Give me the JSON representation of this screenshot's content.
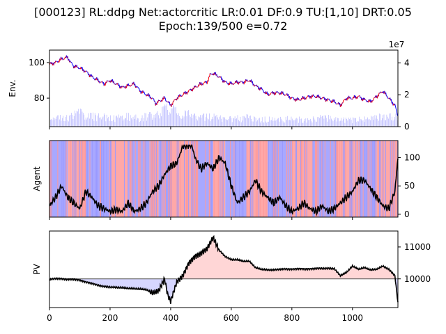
{
  "title_line1": "[000123] RL:ddpg Net:actorcritic LR:0.01 DF:0.9 TU:[1,10] DRT:0.05",
  "title_line2": "Epoch:139/500 e=0.72",
  "chart_data": [
    {
      "type": "line",
      "panel": "env",
      "ylabel": "Env.",
      "xlim": [
        0,
        1150
      ],
      "ylim": [
        64,
        107
      ],
      "yticks": [
        80,
        100
      ],
      "right_axis": {
        "ylim": [
          0,
          48000000
        ],
        "ticks": [
          0,
          2,
          4
        ],
        "exponent_label": "1e7",
        "series": "volume",
        "type": "bar",
        "color": "#6666ff"
      },
      "colors": {
        "up": "#ff0000",
        "down": "#0000ff"
      },
      "series": [
        {
          "values_x": [
            0,
            20,
            40,
            60,
            70,
            80,
            100,
            120,
            140,
            160,
            180,
            200,
            220,
            240,
            260,
            280,
            300,
            320,
            340,
            350,
            360,
            380,
            400,
            420,
            440,
            460,
            480,
            500,
            520,
            530,
            540,
            560,
            580,
            600,
            620,
            640,
            660,
            680,
            700,
            720,
            740,
            760,
            780,
            800,
            820,
            840,
            860,
            880,
            900,
            920,
            940,
            960,
            980,
            1000,
            1020,
            1040,
            1060,
            1080,
            1100,
            1120,
            1140,
            1150
          ],
          "values": [
            99,
            100,
            102,
            103,
            100,
            98,
            97,
            95,
            92,
            90,
            88,
            90,
            88,
            86,
            87,
            88,
            84,
            82,
            80,
            77,
            78,
            80,
            76,
            80,
            82,
            84,
            86,
            88,
            89,
            93,
            94,
            92,
            89,
            88,
            89,
            89,
            90,
            87,
            85,
            82,
            83,
            83,
            82,
            80,
            79,
            80,
            81,
            81,
            80,
            79,
            78,
            76,
            80,
            80,
            81,
            79,
            78,
            81,
            84,
            80,
            76,
            70
          ]
        }
      ],
      "volume": {
        "x": [
          0,
          50,
          100,
          150,
          200,
          250,
          300,
          350,
          400,
          450,
          500,
          550,
          600,
          650,
          700,
          750,
          800,
          850,
          900,
          950,
          1000,
          1050,
          1100,
          1150
        ],
        "values": [
          6000000,
          8000000,
          12000000,
          9000000,
          8000000,
          9000000,
          8000000,
          11000000,
          16000000,
          12000000,
          9000000,
          8000000,
          7000000,
          8000000,
          7000000,
          6000000,
          7000000,
          6000000,
          8000000,
          7000000,
          6000000,
          7000000,
          9000000,
          8000000
        ]
      }
    },
    {
      "type": "line",
      "panel": "agent",
      "ylabel": "Agent",
      "xlim": [
        0,
        1150
      ],
      "ylim": [
        -5,
        130
      ],
      "yticks": [
        0,
        50,
        100
      ],
      "background_colors": {
        "buy": "#ff9999",
        "sell": "#9999ff"
      },
      "series": [
        {
          "x": [
            0,
            20,
            40,
            60,
            80,
            100,
            120,
            140,
            160,
            180,
            200,
            220,
            240,
            260,
            280,
            300,
            320,
            340,
            360,
            380,
            400,
            420,
            440,
            460,
            470,
            480,
            500,
            520,
            540,
            560,
            580,
            600,
            620,
            640,
            660,
            680,
            700,
            720,
            740,
            760,
            780,
            800,
            820,
            840,
            860,
            880,
            900,
            920,
            940,
            960,
            980,
            1000,
            1020,
            1040,
            1060,
            1080,
            1100,
            1120,
            1140,
            1150
          ],
          "values": [
            15,
            30,
            50,
            30,
            20,
            10,
            40,
            30,
            15,
            10,
            5,
            8,
            5,
            20,
            5,
            10,
            20,
            40,
            50,
            70,
            85,
            90,
            120,
            122,
            122,
            100,
            80,
            90,
            80,
            100,
            90,
            50,
            20,
            30,
            40,
            60,
            40,
            30,
            20,
            30,
            15,
            5,
            10,
            20,
            10,
            5,
            15,
            5,
            10,
            20,
            30,
            40,
            60,
            60,
            45,
            30,
            15,
            10,
            40,
            100
          ]
        }
      ],
      "position_bands": [
        {
          "x0": 0,
          "x1": 60,
          "side": "sell"
        },
        {
          "x0": 60,
          "x1": 120,
          "side": "buy"
        },
        {
          "x0": 120,
          "x1": 200,
          "side": "sell"
        },
        {
          "x0": 200,
          "x1": 260,
          "side": "buy"
        },
        {
          "x0": 260,
          "x1": 330,
          "side": "sell"
        },
        {
          "x0": 330,
          "x1": 360,
          "side": "buy"
        },
        {
          "x0": 360,
          "x1": 400,
          "side": "sell"
        },
        {
          "x0": 400,
          "x1": 470,
          "side": "buy"
        },
        {
          "x0": 470,
          "x1": 540,
          "side": "sell"
        },
        {
          "x0": 540,
          "x1": 580,
          "side": "buy"
        },
        {
          "x0": 580,
          "x1": 650,
          "side": "sell"
        },
        {
          "x0": 650,
          "x1": 720,
          "side": "buy"
        },
        {
          "x0": 720,
          "x1": 800,
          "side": "sell"
        },
        {
          "x0": 800,
          "x1": 870,
          "side": "buy"
        },
        {
          "x0": 870,
          "x1": 950,
          "side": "sell"
        },
        {
          "x0": 950,
          "x1": 1020,
          "side": "buy"
        },
        {
          "x0": 1020,
          "x1": 1080,
          "side": "sell"
        },
        {
          "x0": 1080,
          "x1": 1150,
          "side": "buy"
        }
      ]
    },
    {
      "type": "area",
      "panel": "pv",
      "ylabel": "PV",
      "xlim": [
        0,
        1150
      ],
      "ylim": [
        9100,
        11500
      ],
      "baseline": 10000,
      "yticks": [
        10000,
        11000
      ],
      "xticks": [
        0,
        200,
        400,
        600,
        800,
        1000
      ],
      "colors": {
        "above": "#ffcccc",
        "below": "#ccccff",
        "line": "#000000",
        "baseline": "#555555"
      },
      "series": [
        {
          "x": [
            0,
            20,
            40,
            60,
            80,
            100,
            120,
            140,
            160,
            180,
            200,
            220,
            240,
            260,
            280,
            300,
            320,
            340,
            360,
            380,
            390,
            400,
            410,
            420,
            440,
            460,
            480,
            500,
            520,
            540,
            560,
            580,
            600,
            620,
            640,
            660,
            680,
            700,
            720,
            740,
            760,
            780,
            800,
            820,
            840,
            860,
            880,
            900,
            920,
            940,
            960,
            980,
            1000,
            1020,
            1040,
            1060,
            1080,
            1100,
            1120,
            1140,
            1150
          ],
          "values": [
            9980,
            10010,
            10000,
            9980,
            9990,
            9960,
            9900,
            9860,
            9800,
            9760,
            9740,
            9730,
            9720,
            9700,
            9690,
            9680,
            9660,
            9560,
            9620,
            10000,
            9500,
            9300,
            9600,
            9900,
            10100,
            10500,
            10700,
            10800,
            10950,
            11300,
            10900,
            10700,
            10600,
            10600,
            10550,
            10550,
            10350,
            10300,
            10280,
            10280,
            10300,
            10310,
            10300,
            10320,
            10310,
            10310,
            10330,
            10330,
            10330,
            10320,
            10100,
            10200,
            10400,
            10300,
            10350,
            10280,
            10300,
            10400,
            10300,
            10100,
            9250
          ]
        }
      ]
    }
  ]
}
